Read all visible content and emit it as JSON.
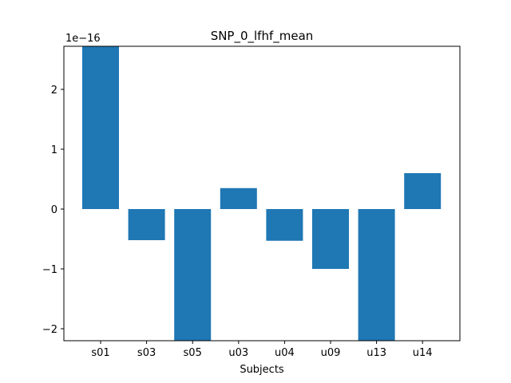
{
  "chart_data": {
    "type": "bar",
    "title": "SNP_0_lfhf_mean",
    "xlabel": "Subjects",
    "ylabel": "",
    "y_offset_text": "1e−16",
    "categories": [
      "s01",
      "s03",
      "s05",
      "u03",
      "u04",
      "u09",
      "u13",
      "u14"
    ],
    "values": [
      2.72,
      -0.52,
      -2.2,
      0.35,
      -0.53,
      -1.0,
      -2.2,
      0.6
    ],
    "ylim": [
      -2.2,
      2.72
    ],
    "yticks": [
      -2,
      -1,
      0,
      1,
      2
    ],
    "ytick_labels": [
      "−2",
      "−1",
      "0",
      "1",
      "2"
    ],
    "grid": false,
    "bar_color": "#1f77b4"
  }
}
